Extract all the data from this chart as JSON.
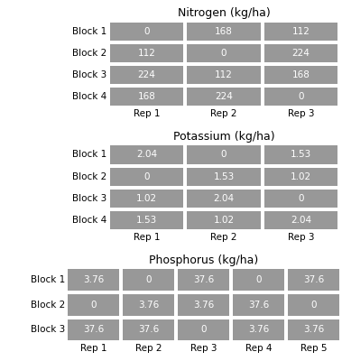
{
  "nitrogen": {
    "title": "Nitrogen (kg/ha)",
    "rows": [
      "Block 1",
      "Block 2",
      "Block 3",
      "Block 4"
    ],
    "cols": [
      "Rep 1",
      "Rep 2",
      "Rep 3"
    ],
    "values": [
      [
        "0",
        "168",
        "112"
      ],
      [
        "112",
        "0",
        "224"
      ],
      [
        "224",
        "112",
        "168"
      ],
      [
        "168",
        "224",
        "0"
      ]
    ],
    "n_cols": 3,
    "n_rows": 4
  },
  "potassium": {
    "title": "Potassium (kg/ha)",
    "rows": [
      "Block 1",
      "Block 2",
      "Block 3",
      "Block 4"
    ],
    "cols": [
      "Rep 1",
      "Rep 2",
      "Rep 3"
    ],
    "values": [
      [
        "2.04",
        "0",
        "1.53"
      ],
      [
        "0",
        "1.53",
        "1.02"
      ],
      [
        "1.02",
        "2.04",
        "0"
      ],
      [
        "1.53",
        "1.02",
        "2.04"
      ]
    ],
    "n_cols": 3,
    "n_rows": 4
  },
  "phosphorus": {
    "title": "Phosphorus (kg/ha)",
    "rows": [
      "Block 1",
      "Block 2",
      "Block 3"
    ],
    "cols": [
      "Rep 1",
      "Rep 2",
      "Rep 3",
      "Rep 4",
      "Rep 5"
    ],
    "values": [
      [
        "3.76",
        "0",
        "37.6",
        "0",
        "37.6"
      ],
      [
        "0",
        "3.76",
        "3.76",
        "37.6",
        "0"
      ],
      [
        "37.6",
        "37.6",
        "0",
        "3.76",
        "3.76"
      ]
    ],
    "n_cols": 5,
    "n_rows": 3
  },
  "cell_color": "#989898",
  "cell_text_color": "#ffffff",
  "bg_color": "#ffffff",
  "title_fontsize": 9,
  "label_fontsize": 7.5,
  "cell_text_fontsize": 7.5
}
